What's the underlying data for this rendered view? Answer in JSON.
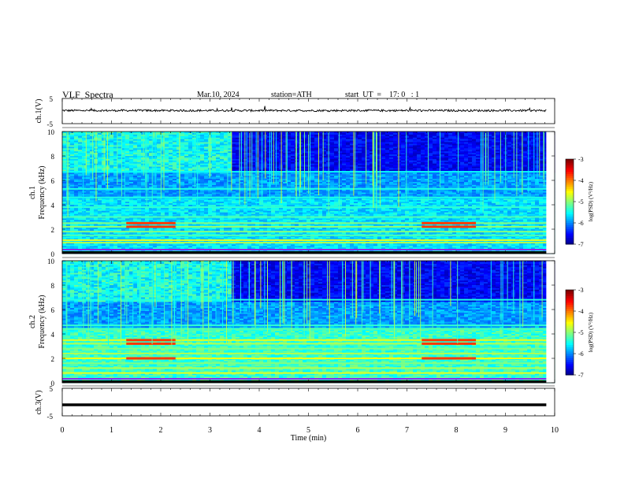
{
  "header": {
    "title": "VLF  Spectra",
    "date": "Mar.10, 2024",
    "station": "station=ATH",
    "start": "start  UT  =    17: 0   : 1"
  },
  "chart_data": [
    {
      "type": "line",
      "name": "ch1-waveform",
      "ylabel": "ch.1(V)",
      "ylim": [
        -5,
        5
      ],
      "yticks": [
        "5",
        "-5"
      ],
      "xlim": [
        0,
        10
      ],
      "description_values": {
        "baseline_V": 0.2,
        "ripple_V": 0.4
      }
    },
    {
      "type": "heatmap",
      "name": "ch1-spectrogram",
      "ylabel_top": "ch.1",
      "ylabel": "Frequency  (kHz)",
      "ylim": [
        0,
        10
      ],
      "yticks": [
        "0",
        "2",
        "4",
        "6",
        "8",
        "10"
      ],
      "xlim": [
        0,
        10
      ],
      "colorbar": {
        "label": "log(PSD) (V²/Hz)",
        "range": [
          -7,
          -3
        ],
        "ticks": [
          "-3",
          "-4",
          "-5",
          "-6",
          "-7"
        ]
      },
      "quiet_onset_min": 3.4,
      "hot_bands_kHz": [
        2.2,
        2.5
      ],
      "hot_intervals_min": [
        [
          1.3,
          2.3
        ],
        [
          7.3,
          8.4
        ]
      ]
    },
    {
      "type": "heatmap",
      "name": "ch2-spectrogram",
      "ylabel_top": "ch.2",
      "ylabel": "Frequency  (kHz)",
      "ylim": [
        0,
        10
      ],
      "yticks": [
        "0",
        "2",
        "4",
        "6",
        "8",
        "10"
      ],
      "xlim": [
        0,
        10
      ],
      "colorbar": {
        "label": "log(PSD) (V²/Hz)",
        "range": [
          -7,
          -3
        ],
        "ticks": [
          "-3",
          "-4",
          "-5",
          "-6",
          "-7"
        ]
      },
      "quiet_onset_min": 3.4,
      "hot_bands_kHz": [
        2.0,
        3.2,
        3.5
      ],
      "hot_intervals_min": [
        [
          1.3,
          2.3
        ],
        [
          7.3,
          8.4
        ]
      ]
    },
    {
      "type": "line",
      "name": "ch3-waveform",
      "ylabel": "ch.3(V)",
      "ylim": [
        -5,
        5
      ],
      "yticks": [
        "5",
        "-5"
      ],
      "xlim": [
        0,
        10
      ],
      "xlabel": "Time  (min)",
      "xticks": [
        "0",
        "1",
        "2",
        "3",
        "4",
        "5",
        "6",
        "7",
        "8",
        "9",
        "10"
      ],
      "description_values": {
        "level_V": -1.0
      }
    }
  ]
}
